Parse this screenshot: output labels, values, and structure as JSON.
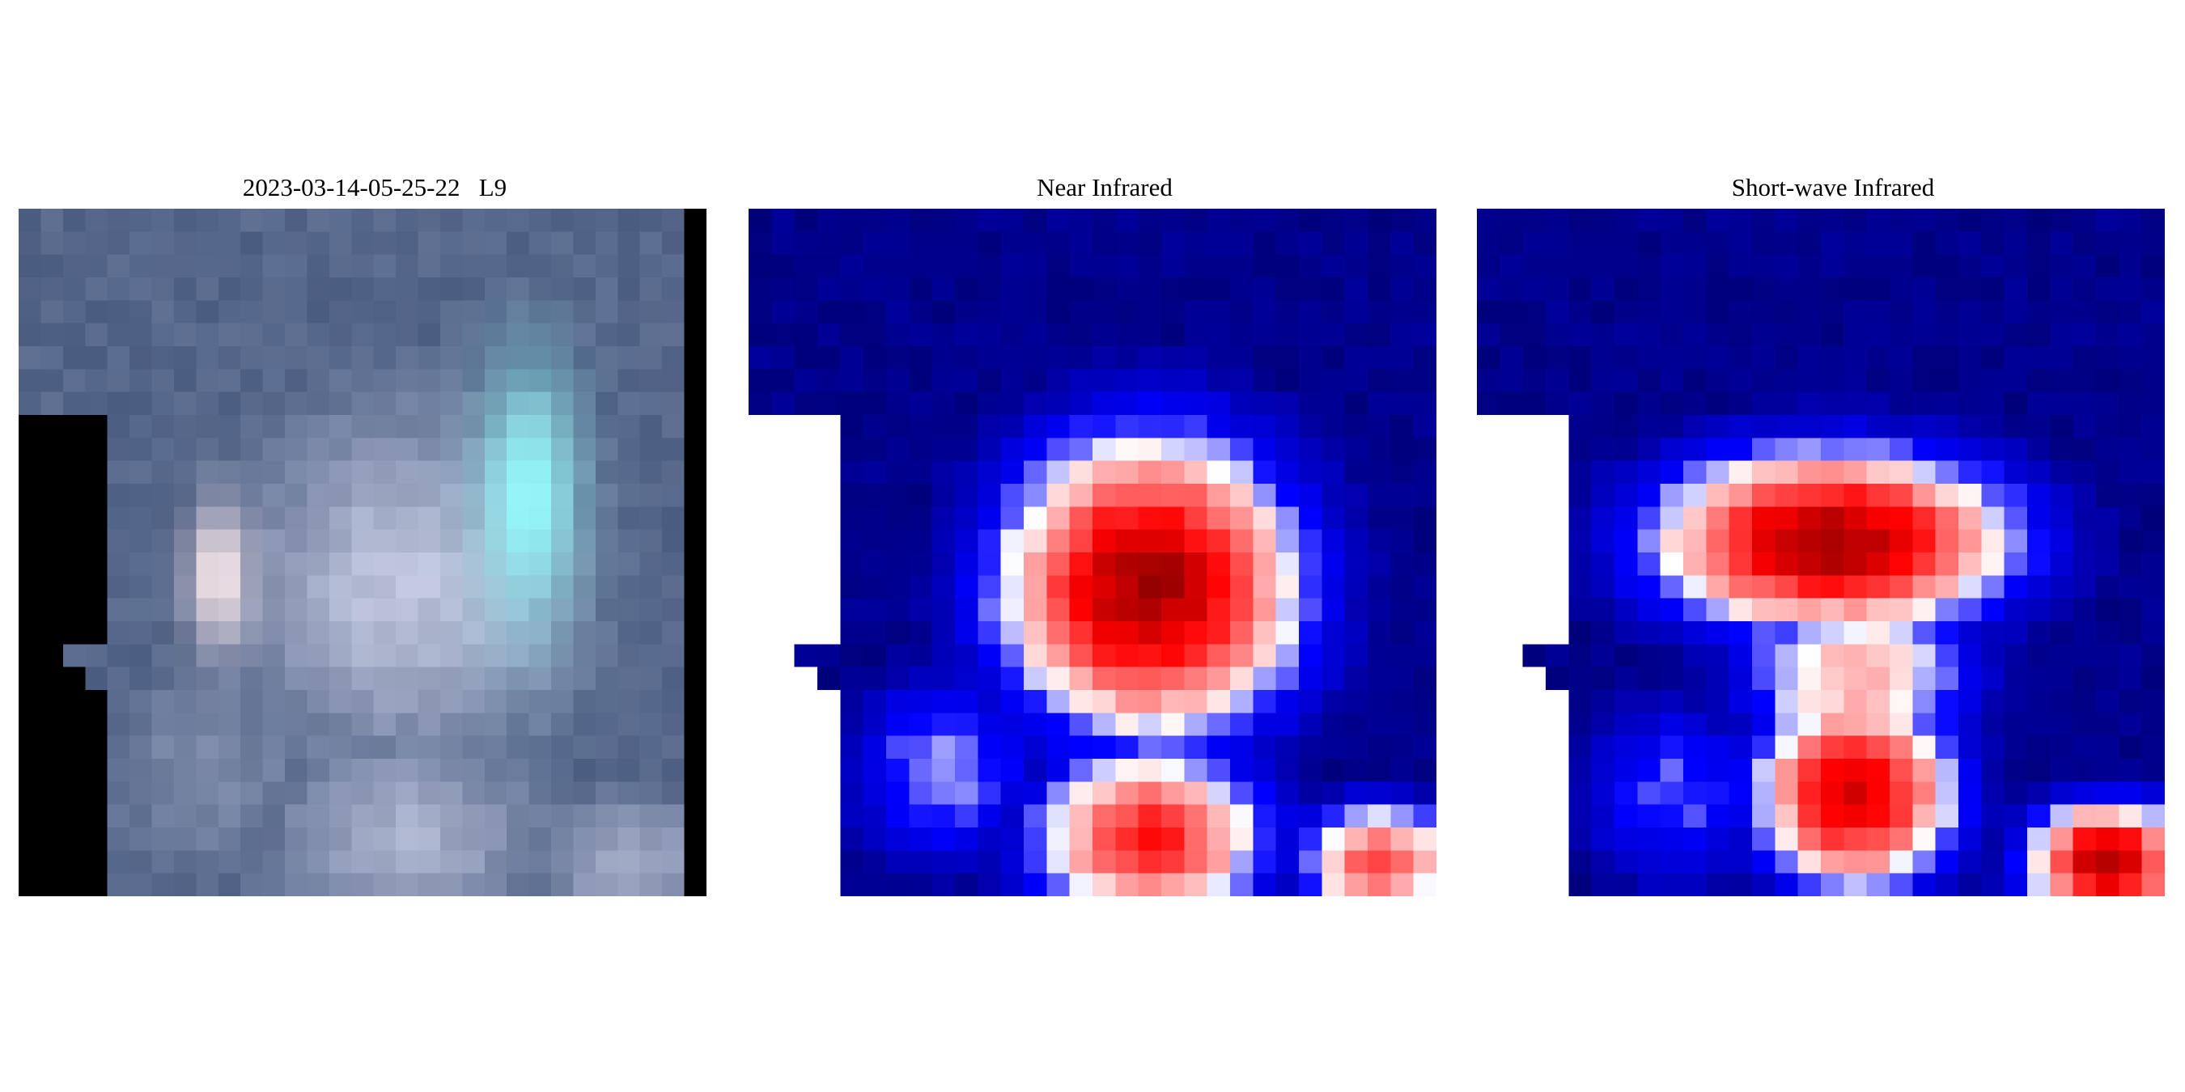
{
  "panels": [
    {
      "title": "2023-03-14-05-25-22   L9",
      "kind": "true-color"
    },
    {
      "title": "Near Infrared",
      "kind": "nir"
    },
    {
      "title": "Short-wave Infrared",
      "kind": "swir"
    }
  ],
  "colors": {
    "background": "#ffffff",
    "no_data_rgb": "#000000",
    "no_data_band": "#ffffff",
    "colormap_low": "#00004c",
    "colormap_mid": "#ffffff",
    "colormap_high": "#800000"
  }
}
